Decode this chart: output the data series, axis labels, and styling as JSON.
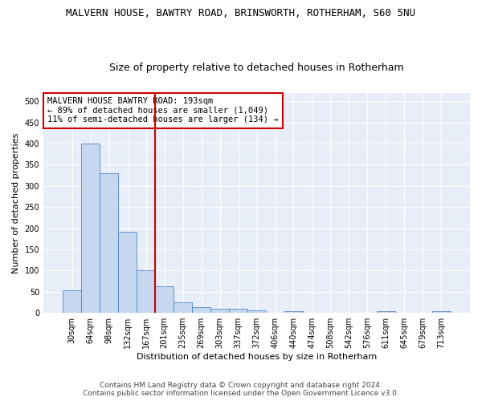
{
  "title": "MALVERN HOUSE, BAWTRY ROAD, BRINSWORTH, ROTHERHAM, S60 5NU",
  "subtitle": "Size of property relative to detached houses in Rotherham",
  "xlabel": "Distribution of detached houses by size in Rotherham",
  "ylabel": "Number of detached properties",
  "categories": [
    "30sqm",
    "64sqm",
    "98sqm",
    "132sqm",
    "167sqm",
    "201sqm",
    "235sqm",
    "269sqm",
    "303sqm",
    "337sqm",
    "372sqm",
    "406sqm",
    "440sqm",
    "474sqm",
    "508sqm",
    "542sqm",
    "576sqm",
    "611sqm",
    "645sqm",
    "679sqm",
    "713sqm"
  ],
  "values": [
    53,
    400,
    330,
    192,
    100,
    63,
    25,
    14,
    10,
    10,
    6,
    0,
    5,
    0,
    0,
    0,
    0,
    5,
    0,
    0,
    5
  ],
  "bar_color": "#c5d8f0",
  "bar_edge_color": "#5585c5",
  "vline_x_index": 4.5,
  "vline_color": "#cc0000",
  "ylim": [
    0,
    520
  ],
  "yticks": [
    0,
    50,
    100,
    150,
    200,
    250,
    300,
    350,
    400,
    450,
    500
  ],
  "annotation_line1": "MALVERN HOUSE BAWTRY ROAD: 193sqm",
  "annotation_line2": "← 89% of detached houses are smaller (1,049)",
  "annotation_line3": "11% of semi-detached houses are larger (134) →",
  "annotation_box_color": "#cc0000",
  "footer_line1": "Contains HM Land Registry data © Crown copyright and database right 2024.",
  "footer_line2": "Contains public sector information licensed under the Open Government Licence v3.0.",
  "plot_bg_color": "#e8eef8",
  "fig_bg_color": "#ffffff",
  "grid_color": "#ffffff",
  "title_fontsize": 9,
  "subtitle_fontsize": 9,
  "axis_label_fontsize": 8,
  "tick_fontsize": 7,
  "annotation_fontsize": 7.5,
  "footer_fontsize": 6.5
}
